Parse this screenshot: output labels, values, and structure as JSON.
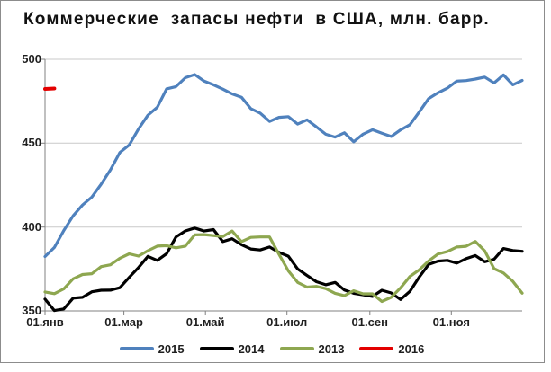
{
  "title": "Коммерческие  запасы нефти  в США, млн. барр.",
  "colors": {
    "grid": "#c9c9c9",
    "axis": "#808080",
    "tick": "#808080",
    "text": "#1f1f1f",
    "frame_border": "#8c8c8c",
    "background": "#ffffff",
    "series_2015": "#4f81bd",
    "series_2014": "#000000",
    "series_2013": "#8ea750",
    "series_2016": "#e30000"
  },
  "chart_data": {
    "type": "line",
    "title": "Коммерческие  запасы нефти  в США, млн. барр.",
    "xlabel": "",
    "ylabel": "млн. барр.",
    "ylim": [
      350,
      500
    ],
    "yticks": [
      350,
      400,
      450,
      500
    ],
    "grid": true,
    "legend_position": "bottom",
    "x_unit": "week",
    "weeks": 52,
    "xticks": [
      {
        "label": "01.янв",
        "day_of_year": 1
      },
      {
        "label": "01.мар",
        "day_of_year": 60
      },
      {
        "label": "01.май",
        "day_of_year": 121
      },
      {
        "label": "01.июл",
        "day_of_year": 182
      },
      {
        "label": "01.сен",
        "day_of_year": 244
      },
      {
        "label": "01.ноя",
        "day_of_year": 305
      }
    ],
    "series": [
      {
        "name": "2015",
        "color": "#4f81bd",
        "values": [
          382.4,
          387.8,
          397.9,
          406.7,
          413.1,
          417.9,
          425.6,
          434.1,
          444.4,
          448.9,
          458.5,
          466.7,
          471.4,
          482.4,
          483.7,
          489.0,
          490.9,
          487.0,
          484.8,
          482.2,
          479.4,
          477.4,
          470.6,
          467.9,
          463.0,
          465.4,
          465.8,
          461.4,
          463.9,
          459.7,
          455.3,
          453.6,
          456.2,
          450.8,
          455.4,
          458.0,
          455.9,
          454.0,
          457.9,
          461.0,
          468.6,
          476.6,
          480.0,
          482.8,
          487.0,
          487.3,
          488.2,
          489.4,
          485.9,
          490.7,
          484.8,
          487.4
        ]
      },
      {
        "name": "2014",
        "color": "#000000",
        "values": [
          357.0,
          350.2,
          351.2,
          357.6,
          358.1,
          361.4,
          362.3,
          362.4,
          363.8,
          370.0,
          375.9,
          382.5,
          380.1,
          384.1,
          394.1,
          397.7,
          399.4,
          397.6,
          398.5,
          391.3,
          393.0,
          389.5,
          386.9,
          386.3,
          388.1,
          384.9,
          382.6,
          375.0,
          371.1,
          367.4,
          365.6,
          367.0,
          362.5,
          360.5,
          359.6,
          358.6,
          362.3,
          360.7,
          356.8,
          361.7,
          370.2,
          377.7,
          379.7,
          380.1,
          378.5,
          381.1,
          383.0,
          379.3,
          380.8,
          387.2,
          386.0,
          385.5
        ]
      },
      {
        "name": "2013",
        "color": "#8ea750",
        "values": [
          361.3,
          360.3,
          363.1,
          369.1,
          371.7,
          372.2,
          376.4,
          377.5,
          381.4,
          384.0,
          382.7,
          385.9,
          388.6,
          388.9,
          387.6,
          388.6,
          395.3,
          395.5,
          394.9,
          394.3,
          397.6,
          391.3,
          393.8,
          394.1,
          394.1,
          383.8,
          373.9,
          367.0,
          364.2,
          364.6,
          363.3,
          360.5,
          359.1,
          362.0,
          360.2,
          360.2,
          355.6,
          358.1,
          363.7,
          370.5,
          374.5,
          379.8,
          383.9,
          385.4,
          388.1,
          388.5,
          391.4,
          385.8,
          375.2,
          372.6,
          367.6,
          360.6
        ]
      },
      {
        "name": "2016",
        "color": "#e30000",
        "values": [
          482.3,
          482.6
        ]
      }
    ]
  }
}
